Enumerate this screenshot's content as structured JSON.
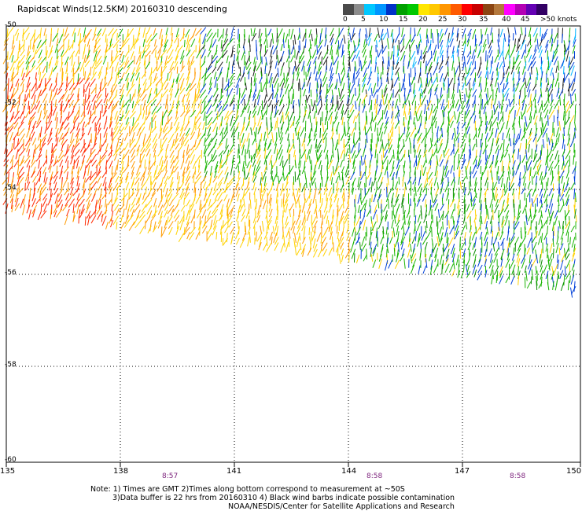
{
  "title": "Rapidscat Winds(12.5KM) 20160310 descending",
  "legend": {
    "labels": [
      "0",
      "5",
      "10",
      "15",
      "20",
      "25",
      "30",
      "35",
      "40",
      "45",
      ">50 knots"
    ],
    "colors": [
      "#4a4a4a",
      "#8c8c8c",
      "#00c8ff",
      "#0096ff",
      "#0032c8",
      "#00a000",
      "#00c800",
      "#ffe600",
      "#ffc800",
      "#ff9600",
      "#ff5a00",
      "#ff0000",
      "#c80000",
      "#8b4513",
      "#b4783c",
      "#ff00ff",
      "#b400b4",
      "#6400b4",
      "#320064"
    ]
  },
  "axes": {
    "lat_labels": [
      "-50",
      "-52",
      "-54",
      "-56",
      "-58",
      "-60"
    ],
    "lon_labels": [
      "135",
      "138",
      "141",
      "144",
      "147",
      "150"
    ]
  },
  "times": [
    "8:57",
    "8:58",
    "8:58"
  ],
  "notes": [
    "Note: 1) Times are GMT 2)Times along bottom correspond to measurement at ~50S",
    "3)Data buffer is 22 hrs from 20160310 4) Black wind barbs indicate possible contamination",
    "NOAA/NESDIS/Center for Satellite Applications and Research"
  ]
}
